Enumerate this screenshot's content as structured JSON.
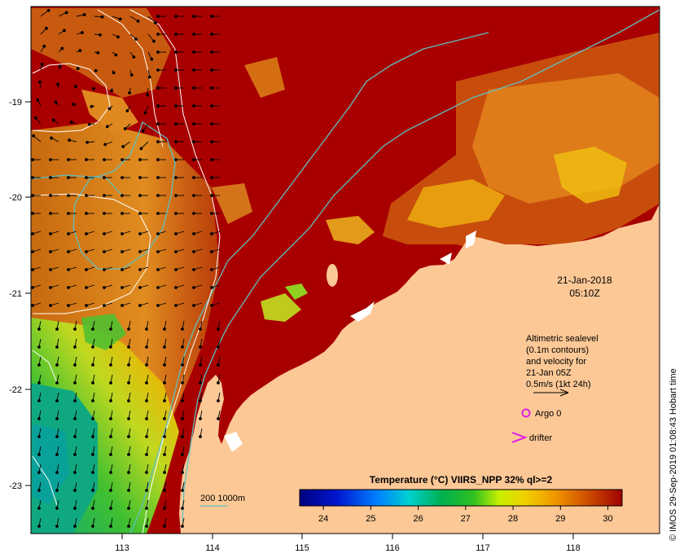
{
  "map": {
    "x_ticks": [
      "113",
      "114",
      "115",
      "116",
      "117",
      "118"
    ],
    "y_ticks": [
      "-19",
      "-20",
      "-21",
      "-22",
      "-23"
    ],
    "date_line1": "21-Jan-2018",
    "date_line2": "05:10Z",
    "legend_text": {
      "line1": "Altimetric sealevel",
      "line2": "(0.1m contours)",
      "line3": "and velocity for",
      "line4": "21-Jan 05Z",
      "line5": "0.5m/s (1kt 24h)"
    },
    "argo_label": "Argo 0",
    "drifter_label": "drifter",
    "isobath_label": "200  1000m",
    "colorbar_title": "Temperature (°C) VIIRS_NPP 32% ql>=2",
    "colorbar_ticks": [
      "24",
      "25",
      "26",
      "27",
      "28",
      "29",
      "30"
    ],
    "colorbar_range": [
      23.5,
      30.3
    ],
    "credit": "© IMOS 29-Sep-2019 01:08:43 Hobart time",
    "colors": {
      "land": "#fcc896",
      "sea_hot": "#a80000",
      "isobath": "#5fc0c0",
      "contour": "#ffffff",
      "argo": "#e020e0",
      "arrow": "#000000"
    }
  }
}
